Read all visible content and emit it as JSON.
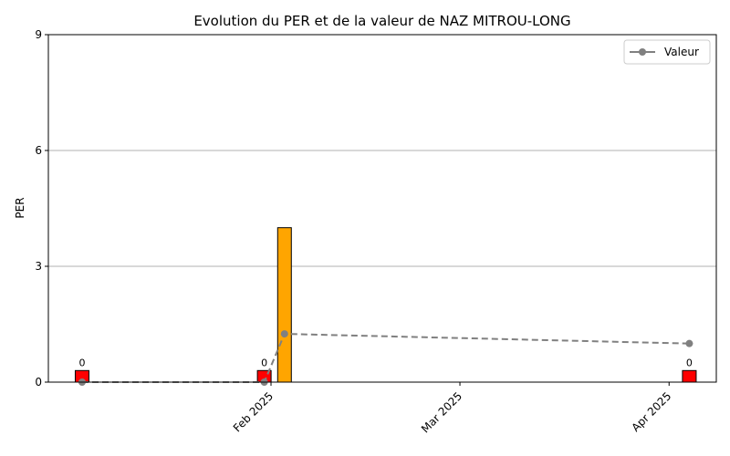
{
  "chart_data": {
    "type": "bar",
    "title": "Evolution du PER et de la valeur de NAZ MITROU-LONG",
    "xlabel": "",
    "ylabel": "PER",
    "ylim": [
      0,
      9
    ],
    "yticks": [
      0,
      3,
      6,
      9
    ],
    "xticks": [
      "Feb 2025",
      "Mar 2025",
      "Apr 2025"
    ],
    "grid": "y",
    "legend_position": "upper right",
    "bars": [
      {
        "date": "2025-01-04",
        "value": 0.3,
        "label": "0",
        "color": "#ff0000"
      },
      {
        "date": "2025-01-31",
        "value": 0.3,
        "label": "0",
        "color": "#ff0000"
      },
      {
        "date": "2025-02-03",
        "value": 4.0,
        "label": "",
        "color": "#ffa500"
      },
      {
        "date": "2025-04-04",
        "value": 0.3,
        "label": "0",
        "color": "#ff0000"
      }
    ],
    "series": [
      {
        "name": "Valeur",
        "color": "#808080",
        "style": "dashed",
        "points": [
          {
            "date": "2025-01-04",
            "value": 0.0
          },
          {
            "date": "2025-01-31",
            "value": 0.0
          },
          {
            "date": "2025-02-03",
            "value": 1.25
          },
          {
            "date": "2025-04-04",
            "value": 1.0
          }
        ]
      }
    ]
  }
}
